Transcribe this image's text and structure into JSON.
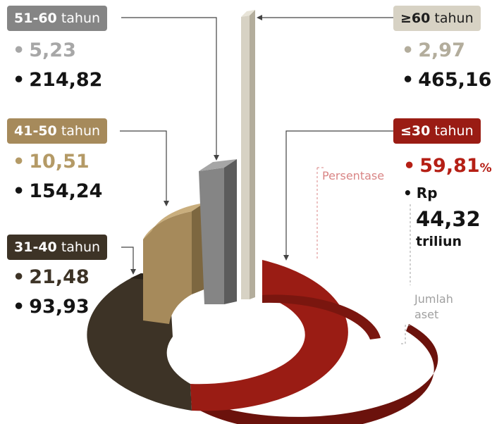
{
  "chart_data": {
    "type": "pie",
    "unit_percent": "%",
    "categories": [
      {
        "key": "g30",
        "label_age": "≤30",
        "label_word": "tahun",
        "percent": 59.81,
        "percent_text": "59,81",
        "assets_text": "44,32",
        "assets_prefix": "Rp",
        "assets_suffix": "triliun",
        "color": "#9a1c14",
        "label_color": "#ffffff"
      },
      {
        "key": "g31",
        "label_age": "31-40",
        "label_word": "tahun",
        "percent": 21.48,
        "percent_text": "21,48",
        "assets_text": "93,93",
        "color": "#3d3326",
        "label_color": "#ffffff"
      },
      {
        "key": "g41",
        "label_age": "41-50",
        "label_word": "tahun",
        "percent": 10.51,
        "percent_text": "10,51",
        "assets_text": "154,24",
        "color": "#a68a5b",
        "label_color": "#ffffff"
      },
      {
        "key": "g51",
        "label_age": "51-60",
        "label_word": "tahun",
        "percent": 5.23,
        "percent_text": "5,23",
        "assets_text": "214,82",
        "color": "#858585",
        "label_color": "#ffffff"
      },
      {
        "key": "g60",
        "label_age": "≥60",
        "label_word": "tahun",
        "percent": 2.97,
        "percent_text": "2,97",
        "assets_text": "465,16",
        "color": "#d7d2c4",
        "label_color": "#1e1e1e"
      }
    ],
    "legend_notes": {
      "persentase": "Persentase",
      "jumlah_aset_1": "Jumlah",
      "jumlah_aset_2": "aset"
    }
  }
}
